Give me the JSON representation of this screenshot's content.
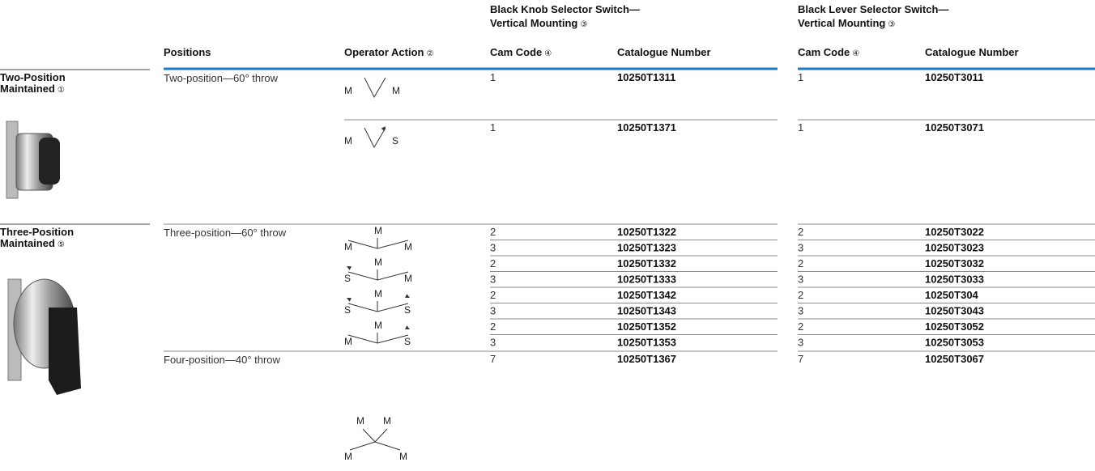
{
  "header": {
    "groups": [
      {
        "title": "Black Knob Selector Switch—",
        "subtitle": "Vertical Mounting",
        "note": "③"
      },
      {
        "title": "Black Lever Selector Switch—",
        "subtitle": "Vertical Mounting",
        "note": "③"
      }
    ],
    "columns": [
      {
        "text": "Positions"
      },
      {
        "text": "Operator Action",
        "note": "②"
      },
      {
        "text": "Cam Code",
        "note": "④"
      },
      {
        "text": "Catalogue Number"
      },
      {
        "text": "Cam Code",
        "note": "④"
      },
      {
        "text": "Catalogue Number"
      }
    ]
  },
  "sections": [
    {
      "title": "Two-Position",
      "subtitle": "Maintained",
      "note": "①",
      "groups": [
        {
          "positions": "Two-position—60° throw",
          "actions": [
            {
              "labels": [
                "M",
                "M"
              ],
              "rows": [
                [
                  "1",
                  "10250T1311",
                  "1",
                  "10250T3011"
                ]
              ]
            },
            {
              "labels": [
                "M",
                "S"
              ],
              "rows": [
                [
                  "1",
                  "10250T1371",
                  "1",
                  "10250T3071"
                ]
              ]
            }
          ]
        }
      ]
    },
    {
      "title": "Three-Position",
      "subtitle": "Maintained",
      "note": "⑤",
      "groups": [
        {
          "positions": "Three-position—60° throw",
          "actions": [
            {
              "labels": [
                "M",
                "M",
                "M"
              ],
              "rows": [
                [
                  "2",
                  "10250T1322",
                  "2",
                  "10250T3022"
                ],
                [
                  "3",
                  "10250T1323",
                  "3",
                  "10250T3023"
                ]
              ]
            },
            {
              "labels": [
                "M",
                "S",
                "M"
              ],
              "rows": [
                [
                  "2",
                  "10250T1332",
                  "2",
                  "10250T3032"
                ],
                [
                  "3",
                  "10250T1333",
                  "3",
                  "10250T3033"
                ]
              ]
            },
            {
              "labels": [
                "M",
                "S",
                "S"
              ],
              "rows": [
                [
                  "2",
                  "10250T1342",
                  "2",
                  "10250T304"
                ],
                [
                  "3",
                  "10250T1343",
                  "3",
                  "10250T3043"
                ]
              ]
            },
            {
              "labels": [
                "M",
                "M",
                "S"
              ],
              "rows": [
                [
                  "2",
                  "10250T1352",
                  "2",
                  "10250T3052"
                ],
                [
                  "3",
                  "10250T1353",
                  "3",
                  "10250T3053"
                ]
              ]
            }
          ]
        },
        {
          "positions": "Four-position—40° throw",
          "actions": [
            {
              "labels": [
                "M",
                "M",
                "M",
                "M"
              ],
              "rows": [
                [
                  "7",
                  "10250T1367",
                  "7",
                  "10250T3067"
                ]
              ]
            }
          ]
        }
      ]
    }
  ]
}
